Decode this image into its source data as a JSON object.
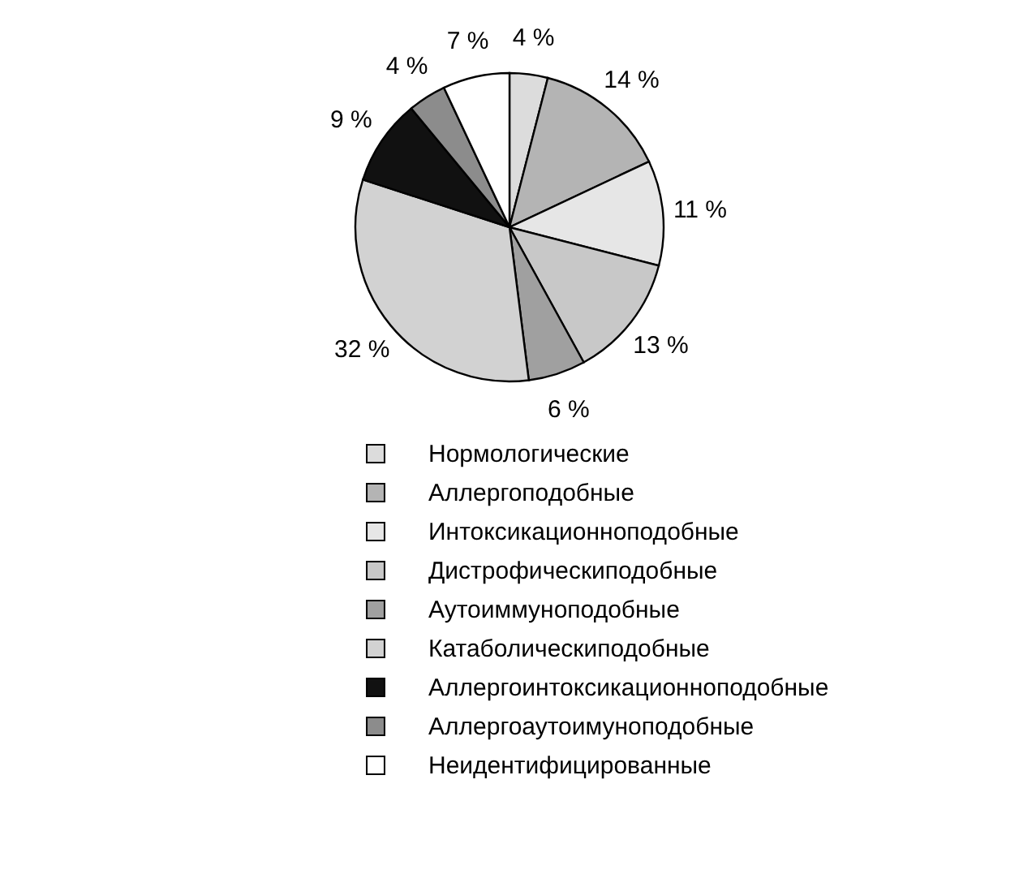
{
  "chart_data": {
    "type": "pie",
    "categories": [
      "Нормологические",
      "Аллергоподобные",
      "Интоксикационноподобные",
      "Дистрофическиподобные",
      " Аутоиммуноподобные",
      "Катаболическиподобные",
      "Аллергоинтоксикационноподобные",
      " Аллергоаутоимуноподобные",
      "Неидентифицированные"
    ],
    "values": [
      4,
      14,
      11,
      13,
      6,
      32,
      9,
      4,
      7
    ],
    "value_labels": [
      "4 %",
      "14 %",
      "11 %",
      "13 %",
      "6 %",
      "32 %",
      "9 %",
      "4 %",
      "7 %"
    ],
    "colors": [
      "#dcdcdc",
      "#b4b4b4",
      "#e6e6e6",
      "#c8c8c8",
      "#a0a0a0",
      "#d2d2d2",
      "#111111",
      "#8c8c8c",
      "#ffffff"
    ],
    "legend": "bottom"
  }
}
